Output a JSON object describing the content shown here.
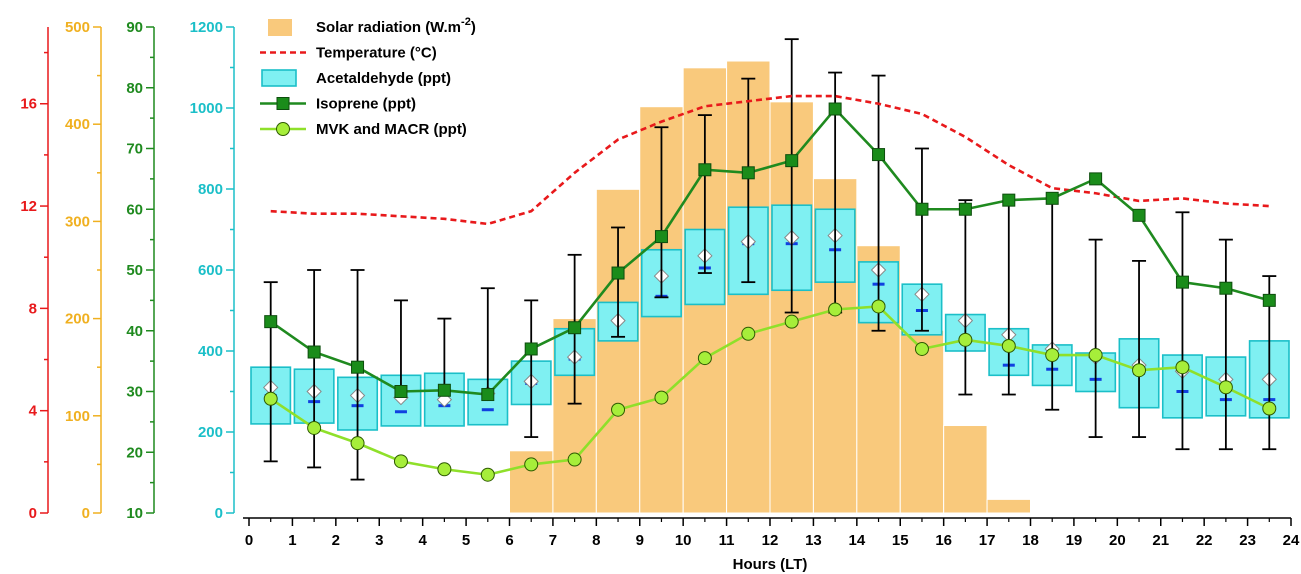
{
  "chart_data": {
    "type": "bar",
    "xlabel": "Hours (LT)",
    "xlim": [
      0,
      24
    ],
    "x_ticks": [
      0,
      1,
      2,
      3,
      4,
      5,
      6,
      7,
      8,
      9,
      10,
      11,
      12,
      13,
      14,
      15,
      16,
      17,
      18,
      19,
      20,
      21,
      22,
      23,
      24
    ],
    "colors": {
      "solar": "#f9c97c",
      "temperature": "#e8191b",
      "acetaldehyde_fill": "#7ff0f2",
      "acetaldehyde_edge": "#1bbfc8",
      "isoprene_line": "#1f8a1f",
      "isoprene_marker": "#1a8c1a",
      "mvk_line": "#8fe02a",
      "mvk_marker": "#a6ee3a",
      "median_mark": "#1040e0",
      "axis_temperature": "#e8191b",
      "axis_solar": "#f0b020",
      "axis_isoprene": "#1f8a1f",
      "axis_acetaldehyde": "#1bbfc8"
    },
    "axes": {
      "temperature": {
        "ylim": [
          0,
          19
        ],
        "ticks": [
          0,
          4,
          8,
          12,
          16
        ],
        "unit": "°C"
      },
      "solar": {
        "ylim": [
          0,
          500
        ],
        "ticks": [
          0,
          100,
          200,
          300,
          400,
          500
        ],
        "unit": "W.m-2"
      },
      "isoprene": {
        "ylim": [
          10,
          90
        ],
        "ticks": [
          10,
          20,
          30,
          40,
          50,
          60,
          70,
          80,
          90
        ],
        "unit": "ppt"
      },
      "acetaldehyde": {
        "ylim": [
          0,
          1200
        ],
        "ticks": [
          0,
          200,
          400,
          600,
          800,
          1000,
          1200
        ],
        "unit": "ppt"
      }
    },
    "legend": [
      {
        "key": "solar",
        "label_main": "Solar radiation (W.m",
        "label_sup": "-2",
        "label_end": ")"
      },
      {
        "key": "temperature",
        "label": "Temperature (°C)"
      },
      {
        "key": "acetaldehyde",
        "label": "Acetaldehyde (ppt)"
      },
      {
        "key": "isoprene",
        "label": "Isoprene (ppt)"
      },
      {
        "key": "mvk",
        "label": "MVK and MACR (ppt)"
      }
    ],
    "solar_radiation": {
      "hours": [
        6,
        7,
        8,
        9,
        10,
        11,
        12,
        13,
        14,
        15,
        16,
        17
      ],
      "values": [
        64,
        200,
        333,
        418,
        458,
        465,
        423,
        344,
        275,
        188,
        90,
        14
      ]
    },
    "temperature": {
      "x": [
        0.5,
        1.5,
        2.5,
        3.5,
        4.5,
        5.5,
        6.5,
        7.5,
        8.5,
        9.5,
        10.5,
        11.5,
        12.5,
        13.5,
        14.5,
        15.5,
        16.5,
        17.5,
        18.5,
        19.5,
        20.5,
        21.5,
        22.5,
        23.5
      ],
      "values": [
        11.8,
        11.7,
        11.7,
        11.6,
        11.5,
        11.3,
        11.8,
        13.3,
        14.6,
        15.3,
        15.9,
        16.1,
        16.3,
        16.3,
        16.0,
        15.6,
        14.7,
        13.6,
        12.7,
        12.5,
        12.2,
        12.3,
        12.1,
        12.0
      ]
    },
    "acetaldehyde": {
      "x": [
        0.5,
        1.5,
        2.5,
        3.5,
        4.5,
        5.5,
        6.5,
        7.5,
        8.5,
        9.5,
        10.5,
        11.5,
        12.5,
        13.5,
        14.5,
        15.5,
        16.5,
        17.5,
        18.5,
        19.5,
        20.5,
        21.5,
        22.5,
        23.5
      ],
      "q1": [
        220,
        222,
        205,
        215,
        215,
        218,
        268,
        340,
        425,
        485,
        515,
        540,
        550,
        570,
        470,
        440,
        400,
        340,
        315,
        300,
        260,
        235,
        240,
        235
      ],
      "q3": [
        360,
        355,
        335,
        340,
        345,
        330,
        375,
        455,
        520,
        650,
        700,
        755,
        760,
        750,
        620,
        565,
        490,
        455,
        415,
        395,
        430,
        390,
        385,
        425
      ],
      "median": [
        290,
        275,
        265,
        250,
        265,
        255,
        320,
        380,
        475,
        535,
        605,
        665,
        665,
        650,
        565,
        500,
        425,
        365,
        355,
        330,
        345,
        300,
        280,
        280
      ],
      "mean": [
        310,
        300,
        290,
        285,
        280,
        295,
        325,
        385,
        475,
        585,
        635,
        670,
        680,
        685,
        600,
        540,
        475,
        440,
        405,
        385,
        365,
        350,
        330,
        330
      ]
    },
    "isoprene": {
      "x": [
        0.5,
        1.5,
        2.5,
        3.5,
        4.5,
        5.5,
        6.5,
        7.5,
        8.5,
        9.5,
        10.5,
        11.5,
        12.5,
        13.5,
        14.5,
        15.5,
        16.5,
        17.5,
        18.5,
        19.5,
        20.5,
        21.5,
        22.5,
        23.5
      ],
      "values": [
        41.5,
        36.5,
        34.0,
        30.0,
        30.2,
        29.5,
        37.0,
        40.5,
        49.5,
        55.5,
        66.5,
        66.0,
        68.0,
        76.5,
        69.0,
        60.0,
        60.0,
        61.5,
        61.8,
        65.0,
        59.0,
        48.0,
        47.0,
        45.0
      ],
      "err_low": [
        18.5,
        17.5,
        15.5,
        null,
        null,
        null,
        22.5,
        28.0,
        39.0,
        45.5,
        49.5,
        48.0,
        43.0,
        43.0,
        40.0,
        40.0,
        29.5,
        29.5,
        27.0,
        22.5,
        22.5,
        20.5,
        20.5,
        20.5
      ],
      "err_high": [
        48.0,
        50.0,
        50.0,
        45.0,
        42.0,
        47.0,
        45.0,
        52.5,
        57.0,
        73.5,
        75.5,
        81.5,
        88.0,
        82.5,
        82.0,
        70.0,
        61.5,
        null,
        null,
        55.0,
        51.5,
        59.5,
        55.0,
        49.0
      ]
    },
    "mvk_macr": {
      "x": [
        0.5,
        1.5,
        2.5,
        3.5,
        4.5,
        5.5,
        6.5,
        7.5,
        8.5,
        9.5,
        10.5,
        11.5,
        12.5,
        13.5,
        14.5,
        15.5,
        16.5,
        17.5,
        18.5,
        19.5,
        20.5,
        21.5,
        22.5,
        23.5
      ],
      "values": [
        28.8,
        24.0,
        21.5,
        18.5,
        17.2,
        16.3,
        18.0,
        18.8,
        27.0,
        29.0,
        35.5,
        39.5,
        41.5,
        43.5,
        44.0,
        37.0,
        38.5,
        37.5,
        36.0,
        36.0,
        33.5,
        34.0,
        30.7,
        27.2
      ]
    }
  }
}
